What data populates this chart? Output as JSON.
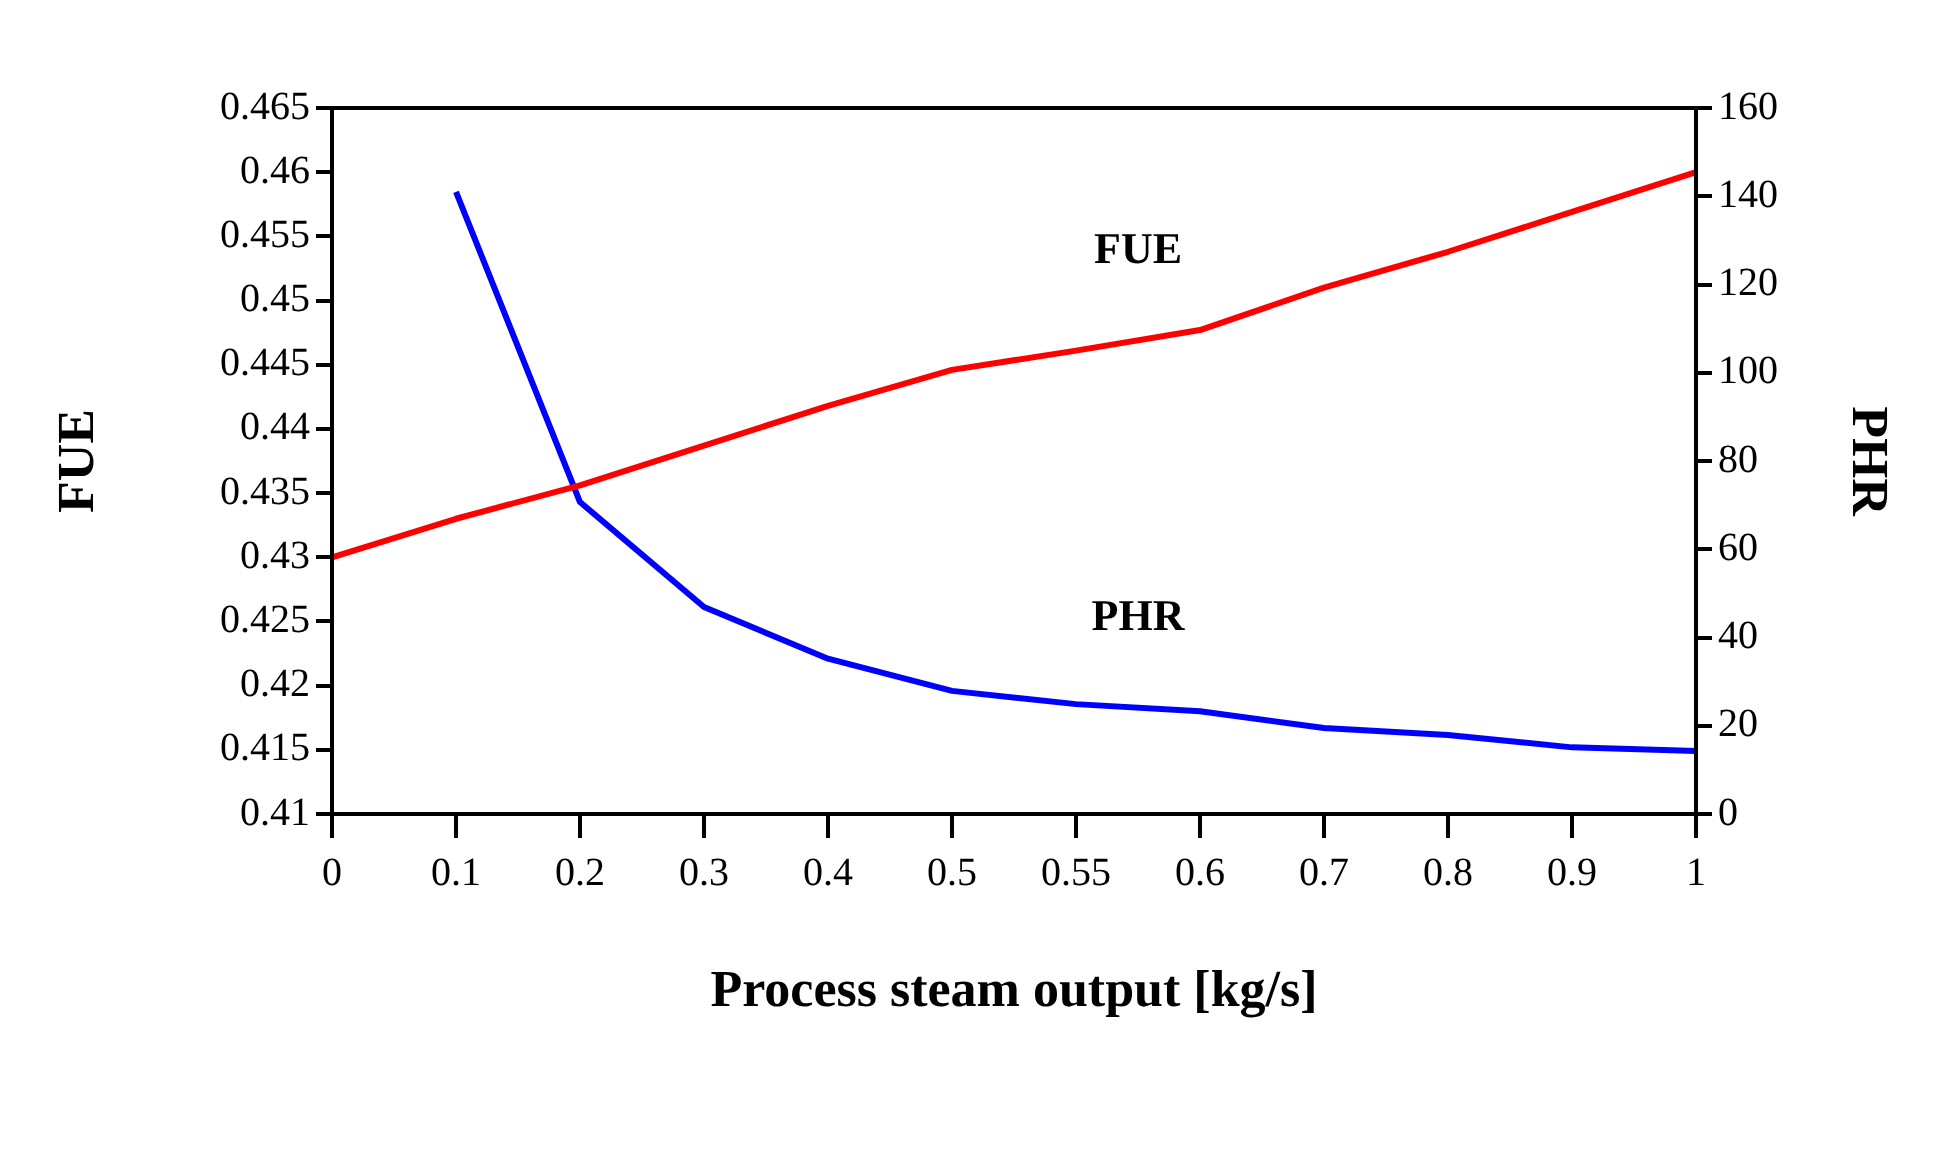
{
  "chart_data": {
    "type": "line",
    "xlabel": "Process steam output [kg/s]",
    "ylabel": "FUE",
    "y2label": "PHR",
    "categories": [
      "0",
      "0.1",
      "0.2",
      "0.3",
      "0.4",
      "0.5",
      "0.55",
      "0.6",
      "0.7",
      "0.8",
      "0.9",
      "1"
    ],
    "series": [
      {
        "name": "FUE",
        "color": "#ff0000",
        "values": [
          0.43,
          0.433,
          0.4356,
          0.4387,
          0.4418,
          0.4446,
          0.4461,
          0.4477,
          0.451,
          0.4538,
          0.4569,
          0.46
        ]
      },
      {
        "name": "PHR",
        "color": "#0000ff",
        "axis": "y2",
        "values": [
          null,
          141,
          70.7,
          46.9,
          35.2,
          27.9,
          24.9,
          23.3,
          19.5,
          17.9,
          15.1,
          14.3
        ]
      }
    ],
    "ylim": [
      0.41,
      0.465
    ],
    "yticks": [
      0.41,
      0.415,
      0.42,
      0.425,
      0.43,
      0.435,
      0.44,
      0.445,
      0.45,
      0.455,
      0.46,
      0.465
    ],
    "y2lim": [
      0,
      160
    ],
    "y2ticks": [
      0,
      20,
      40,
      60,
      80,
      100,
      120,
      140,
      160
    ],
    "grid": false,
    "legend": false,
    "marker": "none",
    "line_style": "solid"
  }
}
